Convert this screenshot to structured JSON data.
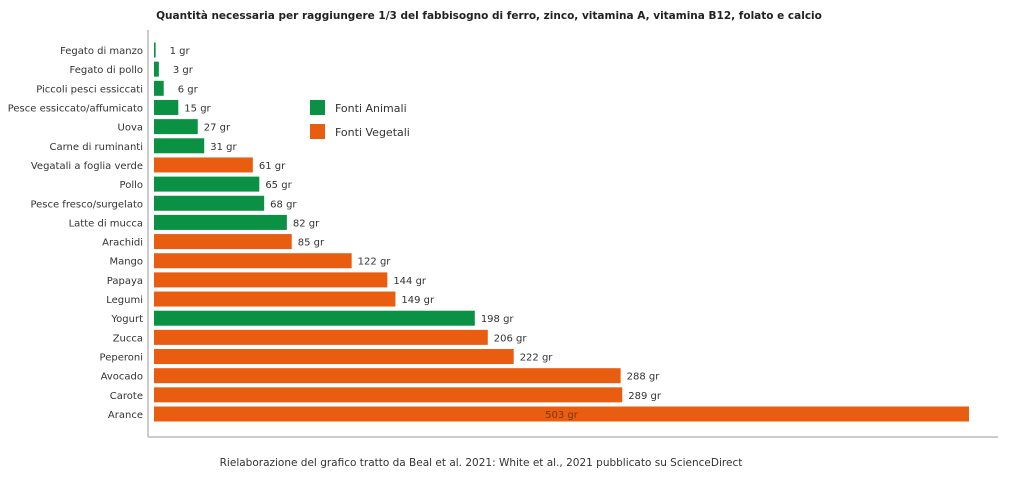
{
  "chart_data": {
    "type": "bar",
    "orientation": "horizontal",
    "title": "Quantità necessaria per raggiungere 1/3 del fabbisogno di ferro, zinco, vitamina A, vitamina B12, folato  e calcio",
    "caption": "Rielaborazione del grafico tratto da Beal et al. 2021: White et al., 2021 pubblicato su ScienceDirect",
    "unit": "gr",
    "categories": [
      "Fegato di manzo",
      "Fegato di pollo",
      "Piccoli pesci essiccati",
      "Pesce essiccato/affumicato",
      "Uova",
      "Carne di ruminanti",
      "Vegatali a foglia verde",
      "Pollo",
      "Pesce fresco/surgelato",
      "Latte di mucca",
      "Arachidi",
      "Mango",
      "Papaya",
      "Legumi",
      "Yogurt",
      "Zucca",
      "Peperoni",
      "Avocado",
      "Carote",
      "Arance"
    ],
    "values": [
      1,
      3,
      6,
      15,
      27,
      31,
      61,
      65,
      68,
      82,
      85,
      122,
      144,
      149,
      198,
      206,
      222,
      288,
      289,
      503
    ],
    "groups": [
      "animal",
      "animal",
      "animal",
      "animal",
      "animal",
      "animal",
      "plant",
      "animal",
      "animal",
      "animal",
      "plant",
      "plant",
      "plant",
      "plant",
      "animal",
      "plant",
      "plant",
      "plant",
      "plant",
      "plant"
    ],
    "data_labels": [
      "1 gr",
      "3  gr",
      "6 gr",
      "15 gr",
      "27 gr",
      "31 gr",
      "61 gr",
      "65 gr",
      "68 gr",
      "82 gr",
      "85 gr",
      "122 gr",
      "144 gr",
      "149 gr",
      "198 gr",
      "206 gr",
      "222 gr",
      "288 gr",
      "289 gr",
      "503 gr"
    ],
    "legend": [
      {
        "key": "animal",
        "name": "Fonti Animali",
        "color": "#0a9144"
      },
      {
        "key": "plant",
        "name": "Fonti Vegetali",
        "color": "#e85d10"
      }
    ],
    "legend_placement": "upper-middle",
    "xlim": [
      0,
      503
    ],
    "grid": false
  }
}
